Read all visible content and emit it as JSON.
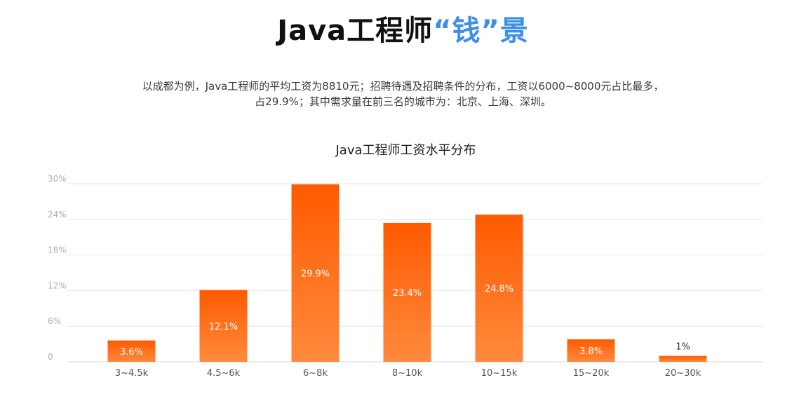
{
  "headline": {
    "prefix": "Java工程师",
    "accent": "“钱”",
    "suffix": "景"
  },
  "intro": {
    "line1": "以成都为例，Java工程师的平均工资为8810元；招聘待遇及招聘条件的分布，工资以6000~8000元占比最多，",
    "line2": "占29.9%；其中需求量在前三名的城市为：北京、上海、深圳。"
  },
  "colors": {
    "accent": "#3d8fe8",
    "bar_top": "#ff5a00",
    "bar_bottom": "#ff8a3d",
    "grid": "#e6e6e6"
  },
  "chart_data": {
    "type": "bar",
    "title": "Java工程师工资水平分布",
    "xlabel": "",
    "ylabel": "",
    "categories": [
      "3~4.5k",
      "4.5~6k",
      "6~8k",
      "8~10k",
      "10~15k",
      "15~20k",
      "20~30k"
    ],
    "values": [
      3.6,
      12.1,
      29.9,
      23.4,
      24.8,
      3.8,
      1
    ],
    "value_labels": [
      "3.6%",
      "12.1%",
      "29.9%",
      "23.4%",
      "24.8%",
      "3.8%",
      "1%"
    ],
    "yticks": [
      0,
      6,
      12,
      18,
      24,
      30
    ],
    "ytick_labels": [
      "0",
      "6%",
      "12%",
      "18%",
      "24%",
      "30%"
    ],
    "ylim": [
      0,
      30
    ],
    "grid": true
  }
}
